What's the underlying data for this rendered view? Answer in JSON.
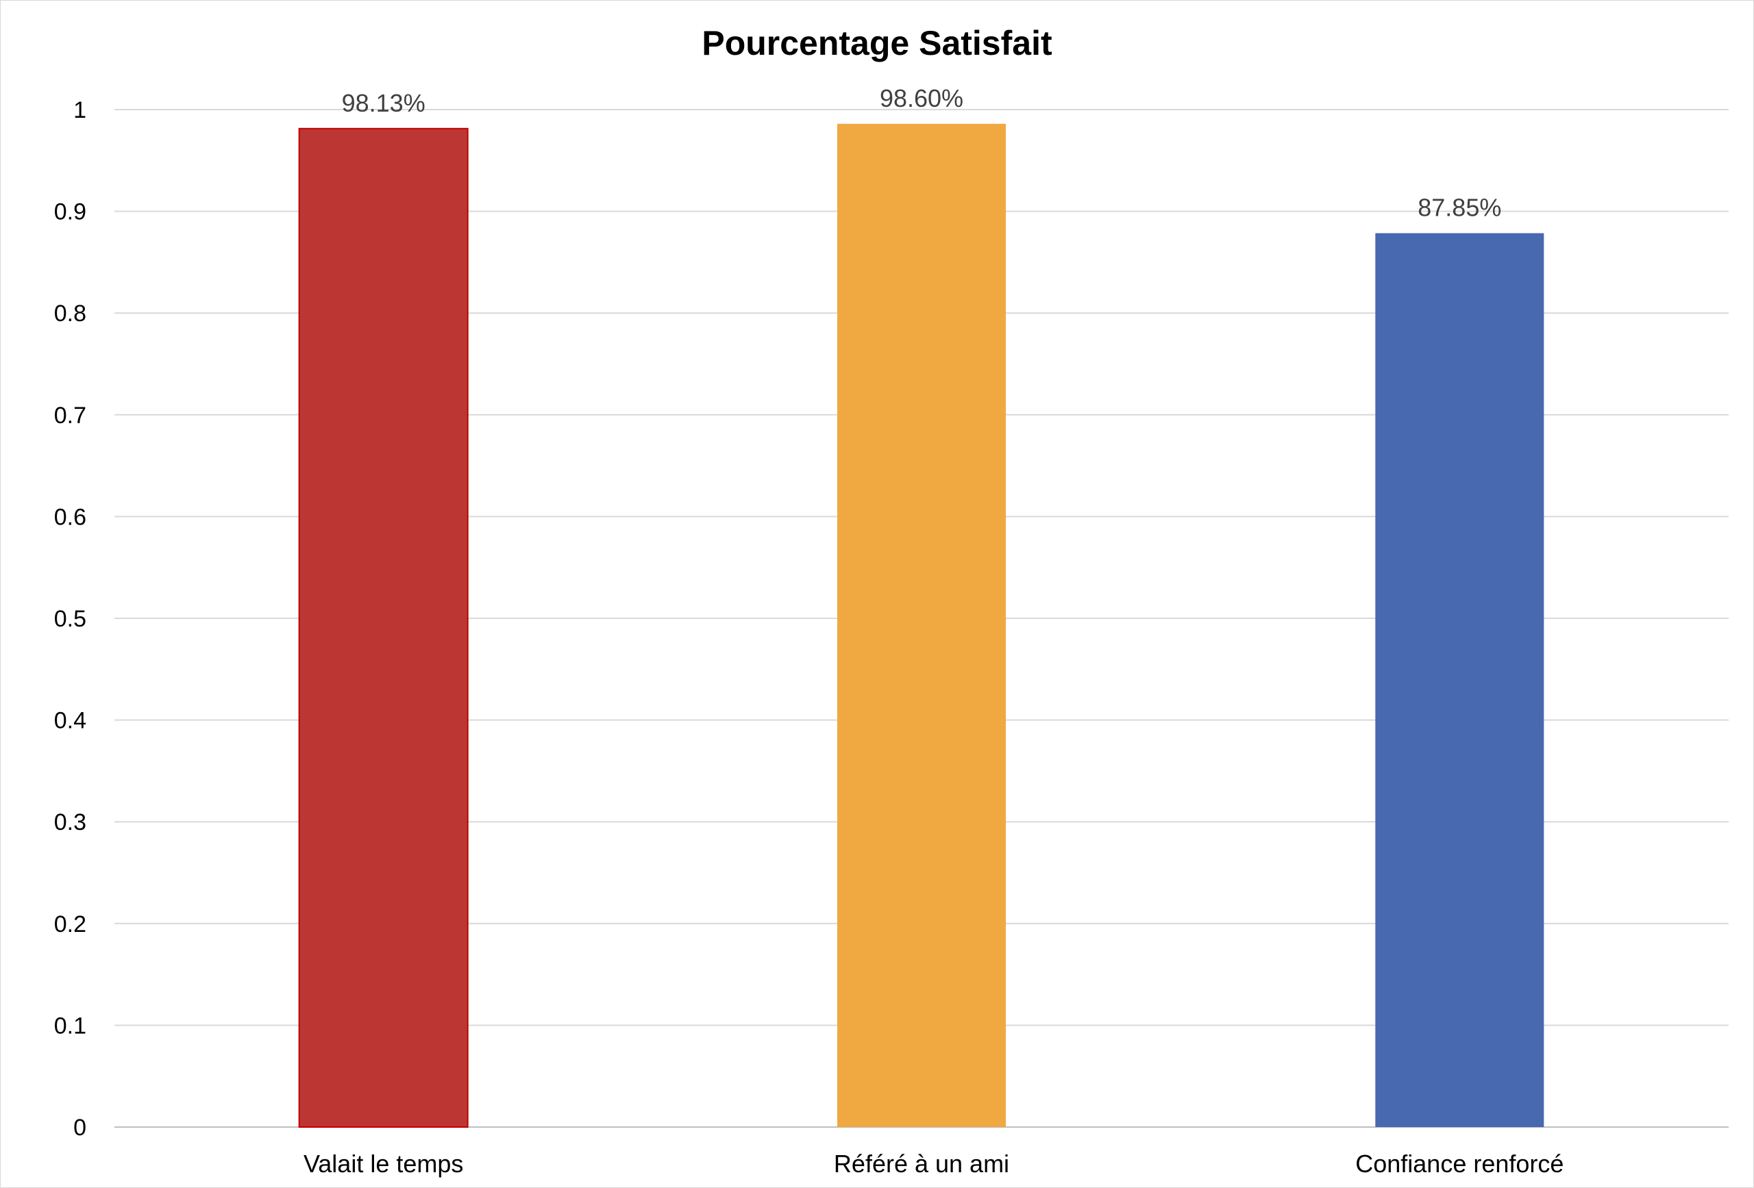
{
  "chart_data": {
    "type": "bar",
    "title": "Pourcentage Satisfait",
    "xlabel": "",
    "ylabel": "",
    "categories": [
      "Valait le temps",
      "Référé à un ami",
      "Confiance renforcé"
    ],
    "values": [
      0.9813,
      0.986,
      0.8785
    ],
    "data_labels": [
      "98.13%",
      "98.60%",
      "87.85%"
    ],
    "colors": [
      "#BC3733",
      "#F0A840",
      "#4868AF"
    ],
    "ylim": [
      0,
      1
    ],
    "yticks": [
      0,
      0.1,
      0.2,
      0.3,
      0.4,
      0.5,
      0.6,
      0.7,
      0.8,
      0.9,
      1
    ],
    "ytick_labels": [
      "0",
      "0.1",
      "0.2",
      "0.3",
      "0.4",
      "0.5",
      "0.6",
      "0.7",
      "0.8",
      "0.9",
      "1"
    ],
    "grid": true,
    "legend": "none"
  }
}
